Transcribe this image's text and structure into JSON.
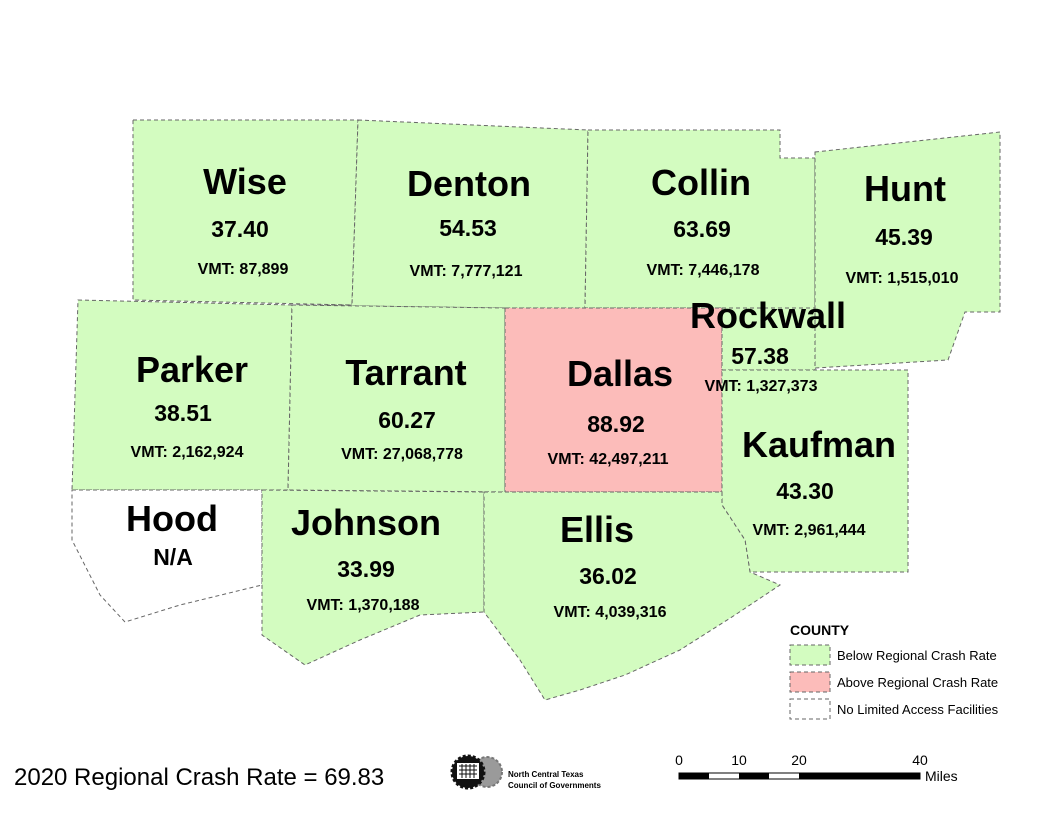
{
  "counties": [
    {
      "name": "Wise",
      "rate": "37.40",
      "vmt": "VMT: 87,899",
      "status": "below"
    },
    {
      "name": "Denton",
      "rate": "54.53",
      "vmt": "VMT: 7,777,121",
      "status": "below"
    },
    {
      "name": "Collin",
      "rate": "63.69",
      "vmt": "VMT: 7,446,178",
      "status": "below"
    },
    {
      "name": "Hunt",
      "rate": "45.39",
      "vmt": "VMT: 1,515,010",
      "status": "below"
    },
    {
      "name": "Parker",
      "rate": "38.51",
      "vmt": "VMT: 2,162,924",
      "status": "below"
    },
    {
      "name": "Tarrant",
      "rate": "60.27",
      "vmt": "VMT: 27,068,778",
      "status": "below"
    },
    {
      "name": "Dallas",
      "rate": "88.92",
      "vmt": "VMT: 42,497,211",
      "status": "above"
    },
    {
      "name": "Rockwall",
      "rate": "57.38",
      "vmt": "VMT: 1,327,373",
      "status": "below"
    },
    {
      "name": "Kaufman",
      "rate": "43.30",
      "vmt": "VMT: 2,961,444",
      "status": "below"
    },
    {
      "name": "Hood",
      "rate": "N/A",
      "vmt": "",
      "status": "none"
    },
    {
      "name": "Johnson",
      "rate": "33.99",
      "vmt": "VMT: 1,370,188",
      "status": "below"
    },
    {
      "name": "Ellis",
      "rate": "36.02",
      "vmt": "VMT: 4,039,316",
      "status": "below"
    }
  ],
  "legend": {
    "title": "COUNTY",
    "items": [
      {
        "label": "Below Regional Crash Rate",
        "color": "#d3fcc0"
      },
      {
        "label": "Above Regional Crash Rate",
        "color": "#fcbcba"
      },
      {
        "label": "No Limited Access Facilities",
        "color": "#ffffff"
      }
    ]
  },
  "regional_rate": "2020 Regional Crash Rate = 69.83",
  "logo": {
    "line1": "North Central Texas",
    "line2": "Council of Governments"
  },
  "scale_bar": {
    "ticks": [
      "0",
      "10",
      "20",
      "40"
    ],
    "unit": "Miles"
  },
  "colors": {
    "below": "#d3fcc0",
    "above": "#fcbcba",
    "none": "#ffffff"
  }
}
